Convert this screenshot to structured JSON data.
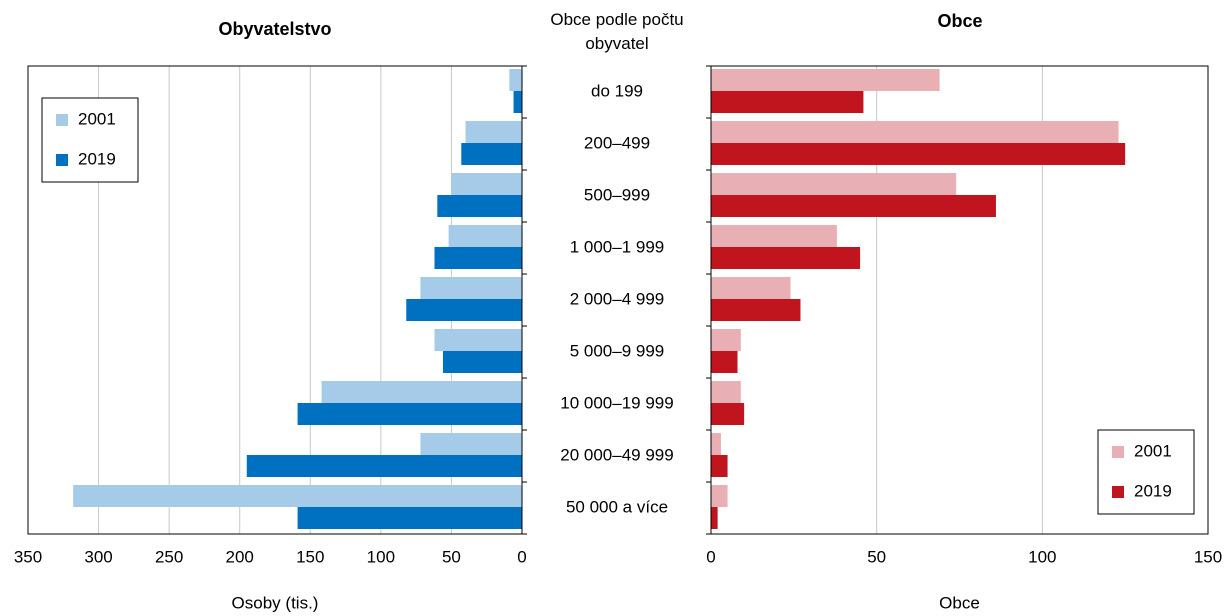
{
  "chart_data": [
    {
      "type": "barh",
      "title": "Obyvatelstvo",
      "category_label": "Obce podle počtu obyvatel",
      "categories": [
        "do 199",
        "200–499",
        "500–999",
        "1 000–1 999",
        "2 000–4 999",
        "5 000–9 999",
        "10 000–19 999",
        "20 000–49 999",
        "50 000 a více"
      ],
      "series": [
        {
          "name": "2001",
          "color": "#a6cbe8",
          "values": [
            9,
            40,
            50,
            52,
            72,
            62,
            142,
            72,
            318
          ]
        },
        {
          "name": "2019",
          "color": "#0070c0",
          "values": [
            6,
            43,
            60,
            62,
            82,
            56,
            159,
            195,
            159
          ]
        }
      ],
      "xlabel": "Osoby (tis.)",
      "xlim": [
        0,
        350
      ],
      "xticks": [
        0,
        50,
        100,
        150,
        200,
        250,
        300,
        350
      ],
      "xinvert": true,
      "grid": true,
      "legend": "upper left"
    },
    {
      "type": "barh",
      "title": "Obce",
      "series": [
        {
          "name": "2001",
          "color": "#e8b0b5",
          "values": [
            69,
            123,
            74,
            38,
            24,
            9,
            9,
            3,
            5
          ]
        },
        {
          "name": "2019",
          "color": "#c0141f",
          "values": [
            46,
            125,
            86,
            45,
            27,
            8,
            10,
            5,
            2
          ]
        }
      ],
      "xlabel": "Obce",
      "xlim": [
        0,
        150
      ],
      "xticks": [
        0,
        50,
        100,
        150
      ],
      "xinvert": false,
      "grid": true,
      "legend": "lower right"
    }
  ]
}
